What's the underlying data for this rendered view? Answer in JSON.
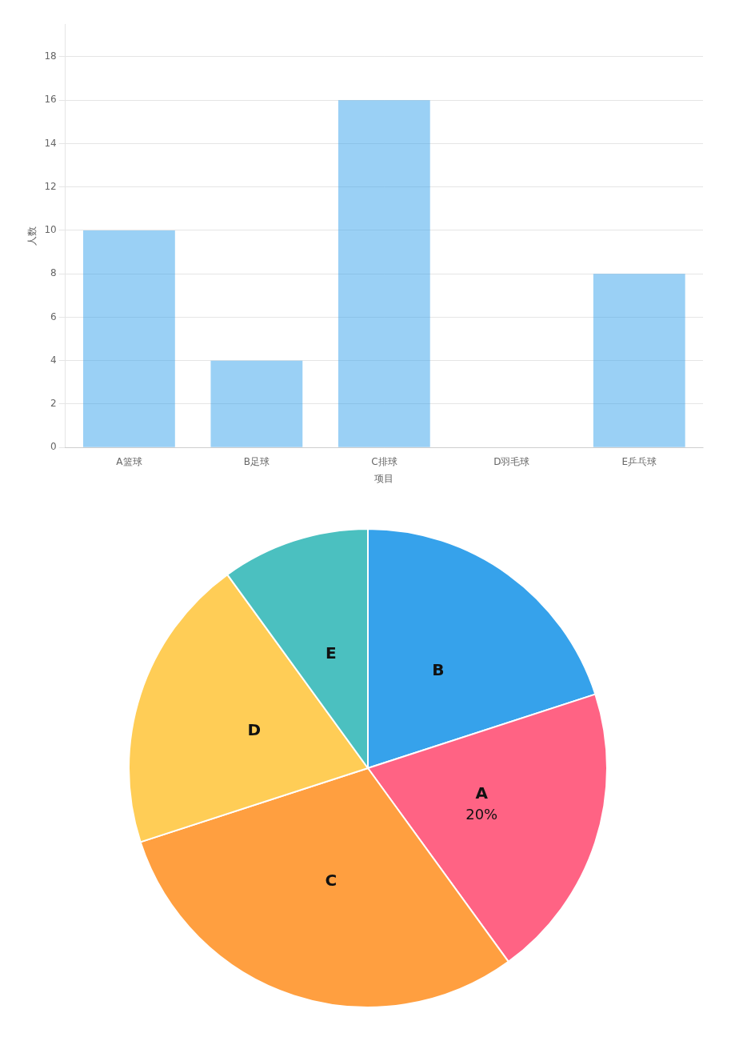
{
  "chart_data": [
    {
      "type": "bar",
      "categories": [
        "A篮球",
        "B足球",
        "C排球",
        "D羽毛球",
        "E乒乓球"
      ],
      "values": [
        10,
        4,
        16,
        0,
        8
      ],
      "y_label": "人数",
      "x_label": "项目",
      "ylim": [
        0,
        19.5
      ],
      "yticks": [
        0,
        2,
        4,
        6,
        8,
        10,
        12,
        14,
        16,
        18
      ],
      "grid": true
    },
    {
      "type": "pie",
      "categories": [
        "B",
        "A",
        "C",
        "D",
        "E"
      ],
      "values": [
        20,
        20,
        30,
        20,
        10
      ],
      "value_labels": [
        null,
        "20%",
        null,
        null,
        null
      ]
    }
  ]
}
